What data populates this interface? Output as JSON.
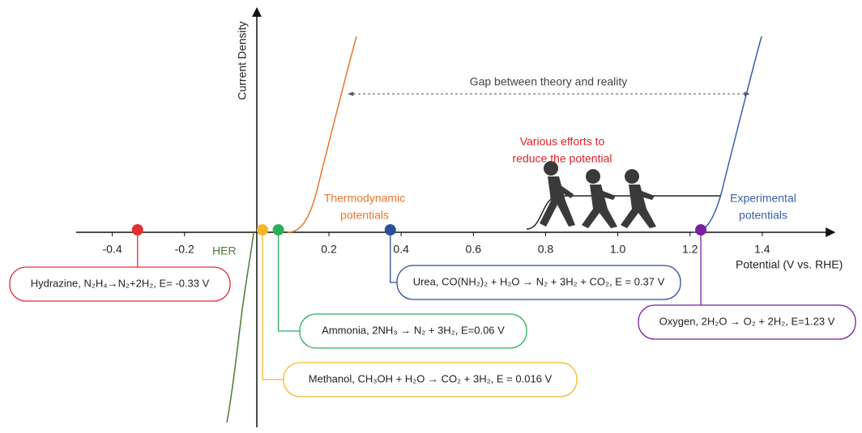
{
  "chart_data": {
    "type": "potential-axis",
    "y_label": "Current Density",
    "x_label": "Potential (V vs. RHE)",
    "xlim": [
      -0.5,
      1.6
    ],
    "xticks": [
      -0.4,
      -0.2,
      0.2,
      0.4,
      0.6,
      0.8,
      {
        "value": 1,
        "label": "1.0"
      },
      1.2,
      1.4
    ],
    "her_label": "HER",
    "thermo_label": [
      "Thermodynamic",
      "potentials"
    ],
    "thermo_color": "#e8772e",
    "experimental_label": [
      "Experimental",
      "potentials"
    ],
    "experimental_color": "#3a5fa8",
    "her_color": "#4f7a2e",
    "gap_label": "Gap between theory and reality",
    "efforts_label": [
      "Various efforts to",
      "reduce the potential"
    ],
    "efforts_color": "#e0202a",
    "points": [
      {
        "label": "Hydrazine, N₂H₄→N₂+2H₂, E= -0.33 V",
        "potential": -0.33,
        "color": "#e03030"
      },
      {
        "label": "Methanol, CH₃OH + H₂O → CO₂ + 3H₂, E = 0.016 V",
        "potential": 0.016,
        "color": "#f5b82a"
      },
      {
        "label": "Ammonia, 2NH₃ → N₂ + 3H₂, E=0.06 V",
        "potential": 0.06,
        "color": "#2fae5a"
      },
      {
        "label": "Urea, CO(NH₂)₂ + H₂O → N₂ + 3H₂ + CO₂, E = 0.37 V",
        "potential": 0.37,
        "color": "#2c4f95"
      },
      {
        "label": "Oxygen, 2H₂O → O₂ + 2H₂, E=1.23 V",
        "potential": 1.23,
        "color": "#7a1fa0"
      }
    ]
  }
}
